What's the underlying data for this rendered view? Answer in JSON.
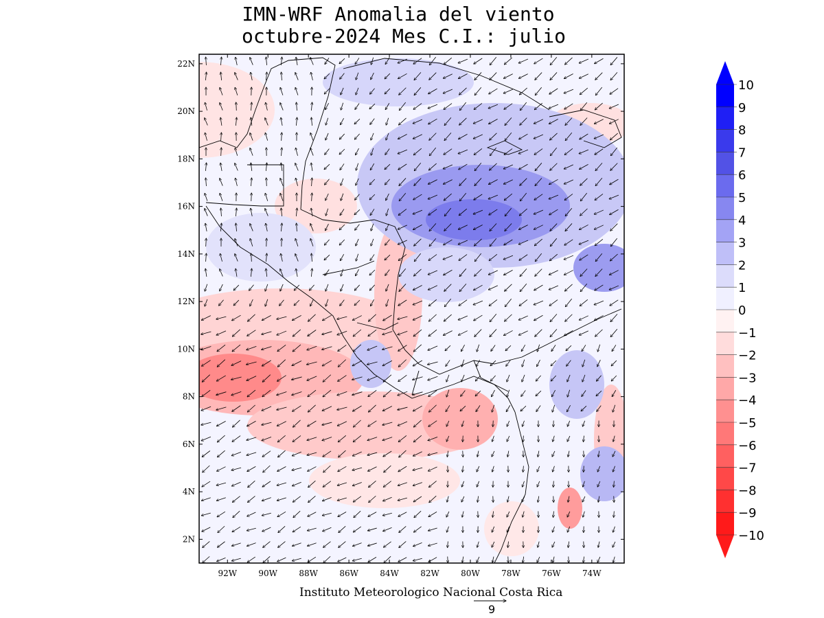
{
  "title": {
    "line1": "IMN-WRF Anomalia del viento",
    "line2": "octubre-2024 Mes C.I.: julio"
  },
  "footer": "Instituto Meteorologico Nacional Costa Rica",
  "reference_vector": {
    "magnitude": "9"
  },
  "axes": {
    "lat_ticks": [
      "22N",
      "20N",
      "18N",
      "16N",
      "14N",
      "12N",
      "10N",
      "8N",
      "6N",
      "4N",
      "2N"
    ],
    "lon_ticks": [
      "92W",
      "90W",
      "88W",
      "86W",
      "84W",
      "82W",
      "80W",
      "78W",
      "76W",
      "74W"
    ],
    "lat_range": [
      1,
      22.4
    ],
    "lon_range": [
      -93.4,
      -72.4
    ]
  },
  "colorbar": {
    "labels": [
      "10",
      "9",
      "8",
      "7",
      "6",
      "5",
      "4",
      "3",
      "2",
      "1",
      "0",
      "−1",
      "−2",
      "−3",
      "−4",
      "−5",
      "−6",
      "−7",
      "−8",
      "−9",
      "−10"
    ],
    "colors": [
      "#0000ff",
      "#1f1ff5",
      "#3a3aec",
      "#5252e6",
      "#6b6bee",
      "#8787f0",
      "#a3a3f5",
      "#bfbff8",
      "#dcdcfb",
      "#f0f0ff",
      "#fff2f2",
      "#ffdcdc",
      "#ffc0c0",
      "#ffa8a8",
      "#ff9090",
      "#ff7878",
      "#ff6060",
      "#ff4848",
      "#ff3030",
      "#ff1a1a"
    ],
    "arrow_top_color": "#0000ff",
    "arrow_bottom_color": "#ff1a1a"
  }
}
